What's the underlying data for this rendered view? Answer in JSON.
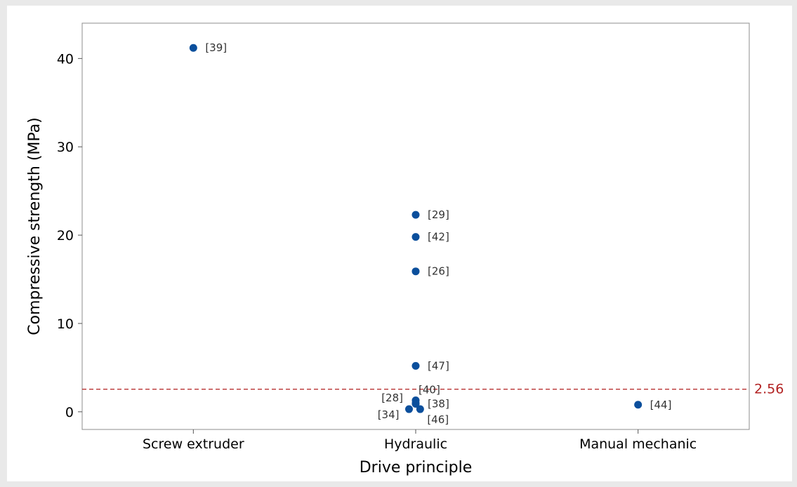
{
  "chart_data": {
    "type": "scatter",
    "xlabel": "Drive principle",
    "ylabel": "Compressive strength (MPa)",
    "categories": [
      "Screw extruder",
      "Hydraulic",
      "Manual mechanic"
    ],
    "ylim": [
      -2,
      44
    ],
    "yticks": [
      0,
      10,
      20,
      30,
      40
    ],
    "grid": false,
    "points": [
      {
        "category": "Screw extruder",
        "y": 41.2,
        "label": "[39]",
        "label_side": "right",
        "jitter": 0
      },
      {
        "category": "Hydraulic",
        "y": 22.3,
        "label": "[29]",
        "label_side": "right",
        "jitter": 0
      },
      {
        "category": "Hydraulic",
        "y": 19.8,
        "label": "[42]",
        "label_side": "right",
        "jitter": 0
      },
      {
        "category": "Hydraulic",
        "y": 15.9,
        "label": "[26]",
        "label_side": "right",
        "jitter": 0
      },
      {
        "category": "Hydraulic",
        "y": 5.2,
        "label": "[47]",
        "label_side": "right",
        "jitter": 0
      },
      {
        "category": "Hydraulic",
        "y": 1.3,
        "label": "[40]",
        "label_side": "above-right",
        "jitter": 0
      },
      {
        "category": "Hydraulic",
        "y": 1.0,
        "label": "[28]",
        "label_side": "above-left",
        "jitter": 0
      },
      {
        "category": "Hydraulic",
        "y": 0.9,
        "label": "[38]",
        "label_side": "right",
        "jitter": 0
      },
      {
        "category": "Hydraulic",
        "y": 0.3,
        "label": "[34]",
        "label_side": "below-left",
        "jitter": -0.03
      },
      {
        "category": "Hydraulic",
        "y": 0.3,
        "label": "[46]",
        "label_side": "below-right",
        "jitter": 0.02
      },
      {
        "category": "Manual mechanic",
        "y": 0.8,
        "label": "[44]",
        "label_side": "right",
        "jitter": 0
      }
    ],
    "reference_line": {
      "y": 2.56,
      "label": "2.56",
      "style": "dashed",
      "color": "#b22222"
    },
    "point_color": "#0b4f9c"
  }
}
